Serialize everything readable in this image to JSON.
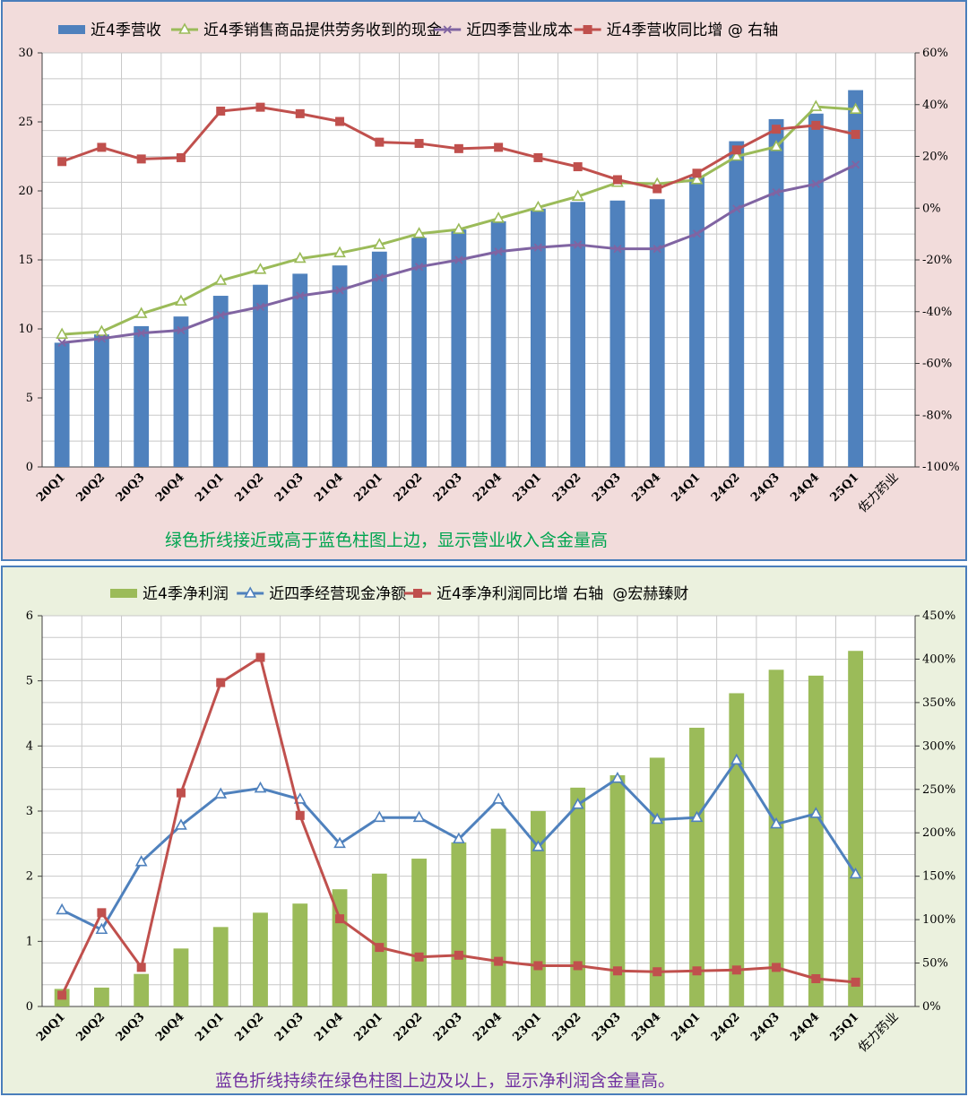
{
  "chart_data": [
    {
      "type": "bar",
      "categories": [
        "20Q1",
        "20Q2",
        "20Q3",
        "20Q4",
        "21Q1",
        "21Q2",
        "21Q3",
        "21Q4",
        "22Q1",
        "22Q2",
        "22Q3",
        "22Q4",
        "23Q1",
        "23Q2",
        "23Q3",
        "23Q4",
        "24Q1",
        "24Q2",
        "24Q3",
        "24Q4",
        "25Q1"
      ],
      "series": [
        {
          "name": "近4季营收",
          "kind": "bar",
          "axis": "left",
          "color": "#4f81bd",
          "values": [
            9.0,
            9.6,
            10.2,
            10.9,
            12.4,
            13.2,
            14.0,
            14.6,
            15.6,
            16.6,
            17.2,
            17.8,
            18.7,
            19.2,
            19.3,
            19.4,
            21.0,
            23.6,
            25.2,
            25.6,
            27.3
          ]
        },
        {
          "name": "近4季销售商品提供劳务收到的现金",
          "kind": "line",
          "axis": "left",
          "color": "#9bbb59",
          "marker": "triangle",
          "values": [
            9.6,
            9.8,
            11.1,
            12.0,
            13.5,
            14.3,
            15.1,
            15.5,
            16.1,
            16.9,
            17.2,
            18.0,
            18.8,
            19.6,
            20.6,
            20.5,
            20.8,
            22.5,
            23.2,
            26.1,
            25.9
          ]
        },
        {
          "name": "近四季营业成本",
          "kind": "line",
          "axis": "left",
          "color": "#8064a2",
          "marker": "x",
          "values": [
            9.0,
            9.3,
            9.7,
            9.9,
            11.0,
            11.6,
            12.4,
            12.8,
            13.7,
            14.5,
            15.0,
            15.6,
            15.9,
            16.1,
            15.8,
            15.8,
            16.9,
            18.7,
            19.9,
            20.5,
            21.9
          ]
        },
        {
          "name": "近4季营收同比增 @ 右轴",
          "kind": "line",
          "axis": "right",
          "color": "#c0504d",
          "marker": "square",
          "values": [
            0.18,
            0.235,
            0.19,
            0.195,
            0.375,
            0.39,
            0.365,
            0.335,
            0.255,
            0.25,
            0.23,
            0.235,
            0.195,
            0.16,
            0.11,
            0.075,
            0.135,
            0.225,
            0.305,
            0.32,
            0.285
          ]
        }
      ],
      "ylim": [
        0,
        30
      ],
      "yticks": [
        "0",
        "5",
        "10",
        "15",
        "20",
        "25",
        "30"
      ],
      "y2lim": [
        -1.0,
        0.6
      ],
      "y2ticks": [
        "-100%",
        "-80%",
        "-60%",
        "-40%",
        "-20%",
        "0%",
        "20%",
        "40%",
        "60%"
      ],
      "grid": true,
      "legend_position": "top",
      "watermark": "佐力药业",
      "annotation": "绿色折线接近或高于蓝色柱图上边，显示营业收入含金量高"
    },
    {
      "type": "bar",
      "categories": [
        "20Q1",
        "20Q2",
        "20Q3",
        "20Q4",
        "21Q1",
        "21Q2",
        "21Q3",
        "21Q4",
        "22Q1",
        "22Q2",
        "22Q3",
        "22Q4",
        "23Q1",
        "23Q2",
        "23Q3",
        "23Q4",
        "24Q1",
        "24Q2",
        "24Q3",
        "24Q4",
        "25Q1"
      ],
      "series": [
        {
          "name": "近4季净利润",
          "kind": "bar",
          "axis": "left",
          "color": "#9bbb59",
          "values": [
            0.27,
            0.29,
            0.5,
            0.89,
            1.22,
            1.44,
            1.58,
            1.8,
            2.04,
            2.27,
            2.52,
            2.73,
            3.0,
            3.36,
            3.55,
            3.82,
            4.28,
            4.81,
            5.17,
            5.08,
            5.46
          ]
        },
        {
          "name": "近四季经营现金净额",
          "kind": "line",
          "axis": "left",
          "color": "#4f81bd",
          "marker": "triangle",
          "values": [
            1.48,
            1.18,
            2.22,
            2.78,
            3.26,
            3.35,
            3.18,
            2.5,
            2.9,
            2.9,
            2.57,
            3.18,
            2.45,
            3.1,
            3.5,
            2.87,
            2.9,
            3.78,
            2.8,
            2.96,
            2.03
          ]
        },
        {
          "name": "近4季净利润同比增 右轴",
          "kind": "line",
          "axis": "right",
          "color": "#c0504d",
          "marker": "square",
          "values": [
            0.13,
            1.08,
            0.45,
            2.46,
            3.73,
            4.02,
            2.2,
            1.01,
            0.68,
            0.57,
            0.59,
            0.52,
            0.47,
            0.47,
            0.41,
            0.4,
            0.41,
            0.42,
            0.45,
            0.32,
            0.28
          ]
        }
      ],
      "ylim": [
        0,
        6
      ],
      "yticks": [
        "0",
        "1",
        "2",
        "3",
        "4",
        "5",
        "6"
      ],
      "y2lim": [
        0,
        4.5
      ],
      "y2ticks": [
        "0%",
        "50%",
        "100%",
        "150%",
        "200%",
        "250%",
        "300%",
        "350%",
        "400%",
        "450%"
      ],
      "grid": true,
      "legend_position": "top",
      "legend_extra": "@宏赫臻财",
      "watermark": "佐力药业",
      "annotation": "蓝色折线持续在绿色柱图上边及以上，显示净利润含金量高。"
    }
  ]
}
